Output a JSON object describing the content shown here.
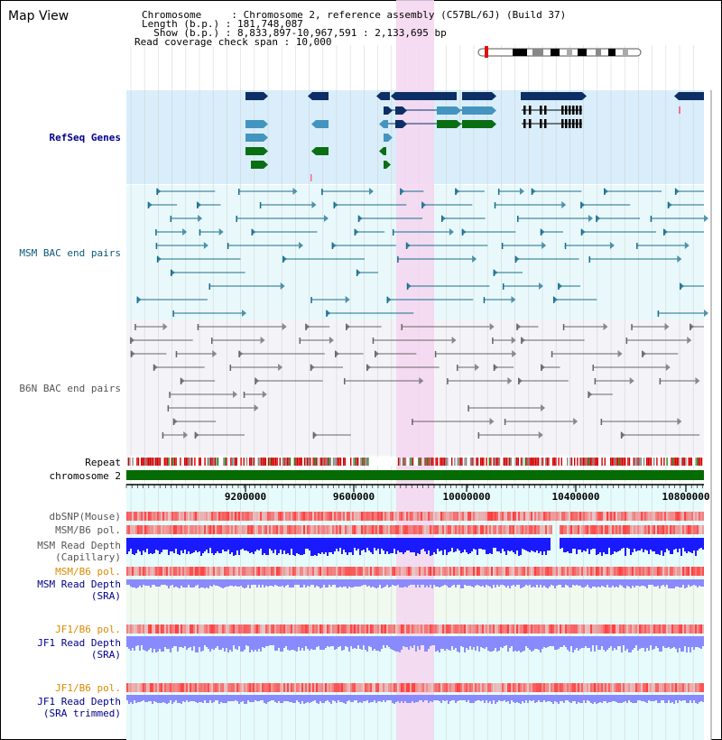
{
  "panel_title": "Map View",
  "header": {
    "chromosome_line": "Chromosome     : Chromosome 2, reference assembly (C57BL/6J) (Build 37)",
    "length_line": "Length (b.p.) : 181,748,087",
    "show_line": "  Show (b.p.) : 8,833,897-10,967,591 : 2,133,695 bp",
    "coverage_line": "Read coverage check span : 10,000"
  },
  "tracks": {
    "refseq": "RefSeq Genes",
    "msm_bac": "MSM BAC end pairs",
    "b6n_bac": "B6N BAC end pairs",
    "repeat": "Repeat",
    "chromosome": "chromosome 2",
    "dbsnp": "dbSNP(Mouse)",
    "msm_pol_1": "MSM/B6 pol.",
    "msm_depth_cap_1": "MSM Read Depth",
    "msm_depth_cap_2": "(Capillary)",
    "msm_pol_2": "MSM/B6 pol.",
    "msm_depth_sra_1": "MSM Read Depth",
    "msm_depth_sra_2": "(SRA)",
    "jf1_pol_1": "JF1/B6 pol.",
    "jf1_depth_sra_1": "JF1 Read Depth",
    "jf1_depth_sra_2": "(SRA)",
    "jf1_pol_2": "JF1/B6 pol.",
    "jf1_depth_trim_1": "JF1 Read Depth",
    "jf1_depth_trim_2": "(SRA trimmed)"
  },
  "ruler_ticks": [
    "9200000",
    "9600000",
    "10000000",
    "10400000",
    "10800000"
  ],
  "colors": {
    "highlight": "#f5d6f0",
    "refseq_bg": "#d9eefa",
    "msm_bg": "#e9f9fb",
    "b6n_bg": "#f4f4f8",
    "gene_dark": "#0d2f66",
    "gene_mid": "#4494c0",
    "gene_green": "#0a6e12",
    "chromosome_bar": "#056b05",
    "msm_bac": "#1a6d8f",
    "b6n_bac": "#666666",
    "depth_blue": "#1a1aff",
    "depth_light": "#8a8aff"
  }
}
